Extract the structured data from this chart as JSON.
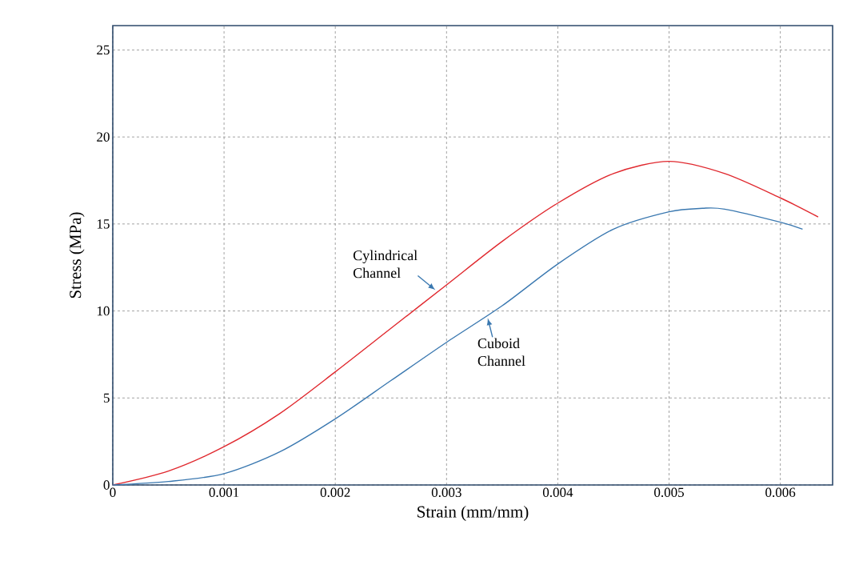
{
  "chart_data": {
    "type": "line",
    "xlabel": "Strain (mm/mm)",
    "ylabel": "Stress (MPa)",
    "xlim": [
      0,
      0.00647
    ],
    "ylim": [
      0,
      26.4
    ],
    "xticks": [
      0,
      0.001,
      0.002,
      0.003,
      0.004,
      0.005,
      0.006
    ],
    "yticks": [
      0,
      5,
      10,
      15,
      20,
      25
    ],
    "grid": true,
    "line_style": "solid",
    "marker": "none",
    "legend": false,
    "series": [
      {
        "color": "#e0282e",
        "x": [
          0,
          0.0005,
          0.001,
          0.0015,
          0.002,
          0.0025,
          0.003,
          0.0035,
          0.004,
          0.0045,
          0.005,
          0.0055,
          0.006,
          0.00634
        ],
        "values": [
          0,
          0.8,
          2.2,
          4.1,
          6.5,
          9.0,
          11.5,
          14.0,
          16.2,
          17.9,
          18.6,
          17.9,
          16.5,
          15.4
        ]
      },
      {
        "color": "#3a78b0",
        "x": [
          0,
          0.0005,
          0.001,
          0.0015,
          0.002,
          0.0025,
          0.003,
          0.0035,
          0.004,
          0.0045,
          0.005,
          0.0053,
          0.0055,
          0.006,
          0.0062
        ],
        "values": [
          0,
          0.2,
          0.65,
          1.9,
          3.8,
          6.0,
          8.2,
          10.3,
          12.7,
          14.7,
          15.7,
          15.9,
          15.85,
          15.1,
          14.7
        ]
      }
    ],
    "annotations": [
      {
        "text": "Cylindrical Channel",
        "x": 0.0029,
        "y": 11.2
      },
      {
        "text": "Cuboid Channel",
        "x": 0.00337,
        "y": 9.6
      }
    ]
  }
}
